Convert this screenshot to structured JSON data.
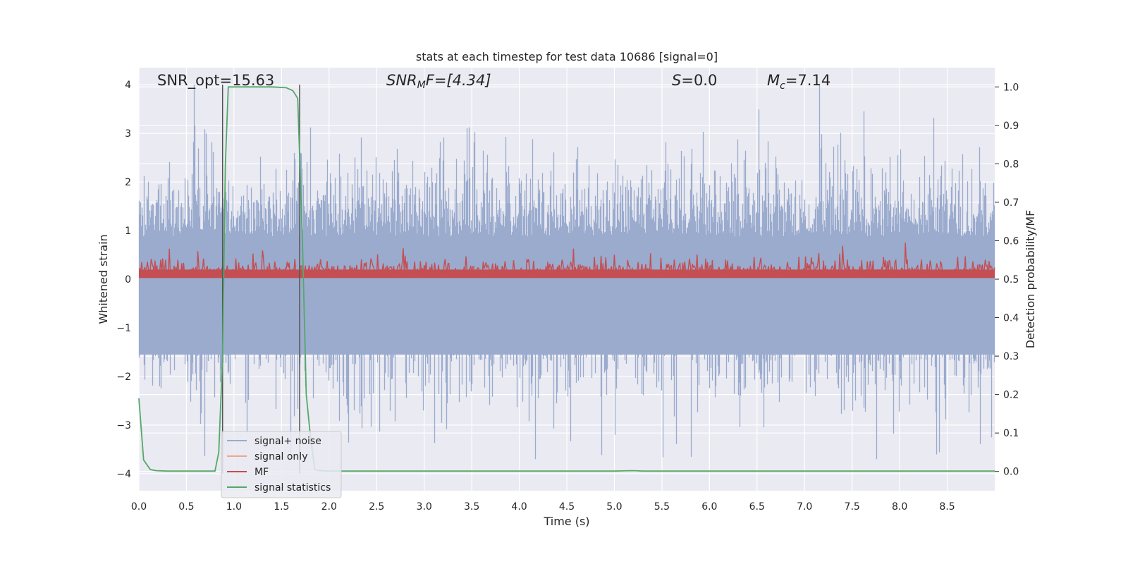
{
  "chart_data": {
    "type": "line",
    "title": "stats at each timestep for test data 10686 [signal=0]",
    "xlabel": "Time (s)",
    "ylabel": "Whitened strain",
    "y2label": "Detection probability/MF",
    "xlim": [
      0,
      9.0
    ],
    "ylim": [
      -4.35,
      4.35
    ],
    "y2lim": [
      -0.05,
      1.05
    ],
    "xticks": [
      "0.0",
      "0.5",
      "1.0",
      "1.5",
      "2.0",
      "2.5",
      "3.0",
      "3.5",
      "4.0",
      "4.5",
      "5.0",
      "5.5",
      "6.0",
      "6.5",
      "7.0",
      "7.5",
      "8.0",
      "8.5"
    ],
    "xtick_values": [
      0,
      0.5,
      1.0,
      1.5,
      2.0,
      2.5,
      3.0,
      3.5,
      4.0,
      4.5,
      5.0,
      5.5,
      6.0,
      6.5,
      7.0,
      7.5,
      8.0,
      8.5
    ],
    "yticks": [
      "4",
      "3",
      "2",
      "1",
      "0",
      "−1",
      "−2",
      "−3",
      "−4"
    ],
    "ytick_values": [
      4,
      3,
      2,
      1,
      0,
      -1,
      -2,
      -3,
      -4
    ],
    "y2ticks": [
      "1.0",
      "0.9",
      "0.8",
      "0.7",
      "0.6",
      "0.5",
      "0.4",
      "0.3",
      "0.2",
      "0.1",
      "0.0"
    ],
    "y2tick_values": [
      1.0,
      0.9,
      0.8,
      0.7,
      0.6,
      0.5,
      0.4,
      0.3,
      0.2,
      0.1,
      0.0
    ],
    "grid": true,
    "legend_position": "lower-left",
    "annotations": {
      "snr_opt": "SNR_opt=15.63",
      "snr_mf_base": "SNR",
      "snr_mf_sub": "M",
      "snr_mf_rest": "F=[4.34]",
      "s_label": "S",
      "s_value": "=0.0",
      "mc_base": "M",
      "mc_sub": "c",
      "mc_value": "=7.14"
    },
    "vertical_lines_x": [
      0.88,
      1.69
    ],
    "series": [
      {
        "name": "signal+ noise",
        "color": "#9aabce",
        "axis": "left",
        "envelope": {
          "upper_typical": 1.6,
          "lower_typical": -1.6,
          "upper_max": 4.0,
          "lower_min": -3.7
        }
      },
      {
        "name": "signal only",
        "color": "#f0a58f",
        "axis": "left",
        "values": []
      },
      {
        "name": "MF",
        "color": "#c44e52",
        "axis": "right",
        "range": [
          0.5,
          0.6
        ]
      },
      {
        "name": "signal statistics",
        "color": "#55a868",
        "axis": "right",
        "x": [
          0,
          0.05,
          0.12,
          0.18,
          0.3,
          0.5,
          0.7,
          0.8,
          0.84,
          0.88,
          0.91,
          0.94,
          1.0,
          1.2,
          1.4,
          1.55,
          1.62,
          1.67,
          1.72,
          1.76,
          1.8,
          1.85,
          1.9,
          2.0,
          3.0,
          4.0,
          5.0,
          5.2,
          5.3,
          6.0,
          7.0,
          8.0,
          9.0
        ],
        "y": [
          0.19,
          0.03,
          0.005,
          0.002,
          0.001,
          0.001,
          0.001,
          0.001,
          0.05,
          0.3,
          0.8,
          1.0,
          1.0,
          1.0,
          1.0,
          0.998,
          0.99,
          0.97,
          0.6,
          0.2,
          0.1,
          0.005,
          0.002,
          0.001,
          0.001,
          0.001,
          0.001,
          0.002,
          0.001,
          0.001,
          0.001,
          0.001,
          0.001
        ]
      }
    ]
  }
}
